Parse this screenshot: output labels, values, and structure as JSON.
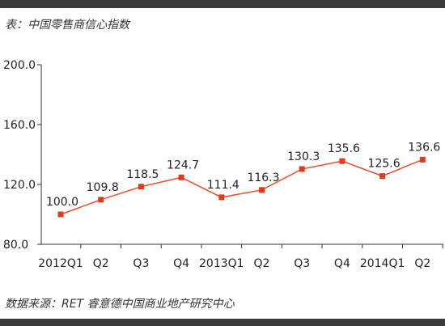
{
  "header": {
    "title": "表：中国零售商信心指数"
  },
  "footer": {
    "source": "数据来源：RET 睿意德中国商业地产研究中心"
  },
  "colors": {
    "line": "#e8502a",
    "marker": "#e03a1c",
    "axis": "#333333"
  },
  "chart_data": {
    "type": "line",
    "title": "表：中国零售商信心指数",
    "categories": [
      "2012Q1",
      "Q2",
      "Q3",
      "Q4",
      "2013Q1",
      "Q2",
      "Q3",
      "Q4",
      "2014Q1",
      "Q2"
    ],
    "series": [
      {
        "values": [
          100.0,
          109.8,
          118.5,
          124.7,
          111.4,
          116.3,
          130.3,
          135.6,
          125.6,
          136.6
        ]
      }
    ],
    "data_labels": [
      "100.0",
      "109.8",
      "118.5",
      "124.7",
      "111.4",
      "116.3",
      "130.3",
      "135.6",
      "125.6",
      "136.6"
    ],
    "y_ticks": [
      80.0,
      120.0,
      160.0,
      200.0
    ],
    "y_tick_labels": [
      "80.0",
      "120.0",
      "160.0",
      "200.0"
    ],
    "ylim": [
      80,
      200
    ],
    "grid": false,
    "legend": "none"
  }
}
